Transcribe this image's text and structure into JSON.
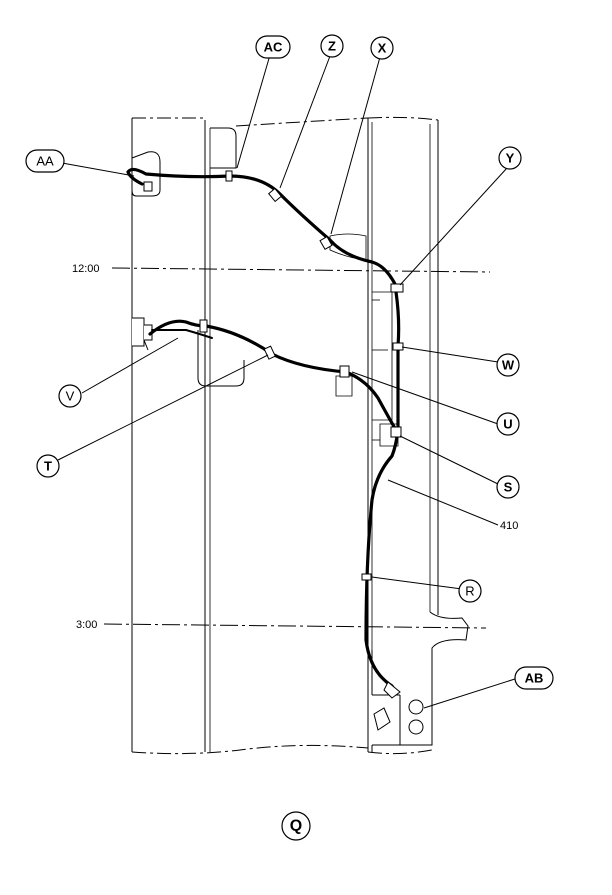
{
  "callouts": {
    "ac": "AC",
    "z": "Z",
    "x": "X",
    "aa": "AA",
    "y": "Y",
    "w": "W",
    "v": "V",
    "u": "U",
    "t": "T",
    "s": "S",
    "r": "R",
    "ab": "AB"
  },
  "stations": {
    "s1200": "12:00",
    "s300": "3:00"
  },
  "harness_label": "410",
  "view_label": "Q"
}
